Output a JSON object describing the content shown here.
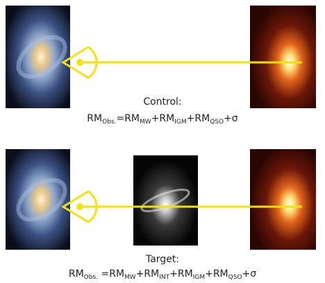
{
  "panels": [
    {
      "label": "Control:",
      "formula": [
        {
          "base": "RM",
          "sub": "Obs."
        },
        {
          "base": "=RM",
          "sub": "MW"
        },
        {
          "base": "+RM",
          "sub": "IGM"
        },
        {
          "base": "+RM",
          "sub": "QSO"
        },
        {
          "base": "+σ"
        }
      ]
    },
    {
      "label": "Target:",
      "formula": [
        {
          "base": "RM",
          "sub": "Obs."
        },
        {
          "base": " =RM",
          "sub": "MW"
        },
        {
          "base": "+RM",
          "sub": "INT"
        },
        {
          "base": "+RM",
          "sub": "IGM"
        },
        {
          "base": "+RM",
          "sub": "QSO"
        },
        {
          "base": "+σ"
        }
      ]
    }
  ]
}
